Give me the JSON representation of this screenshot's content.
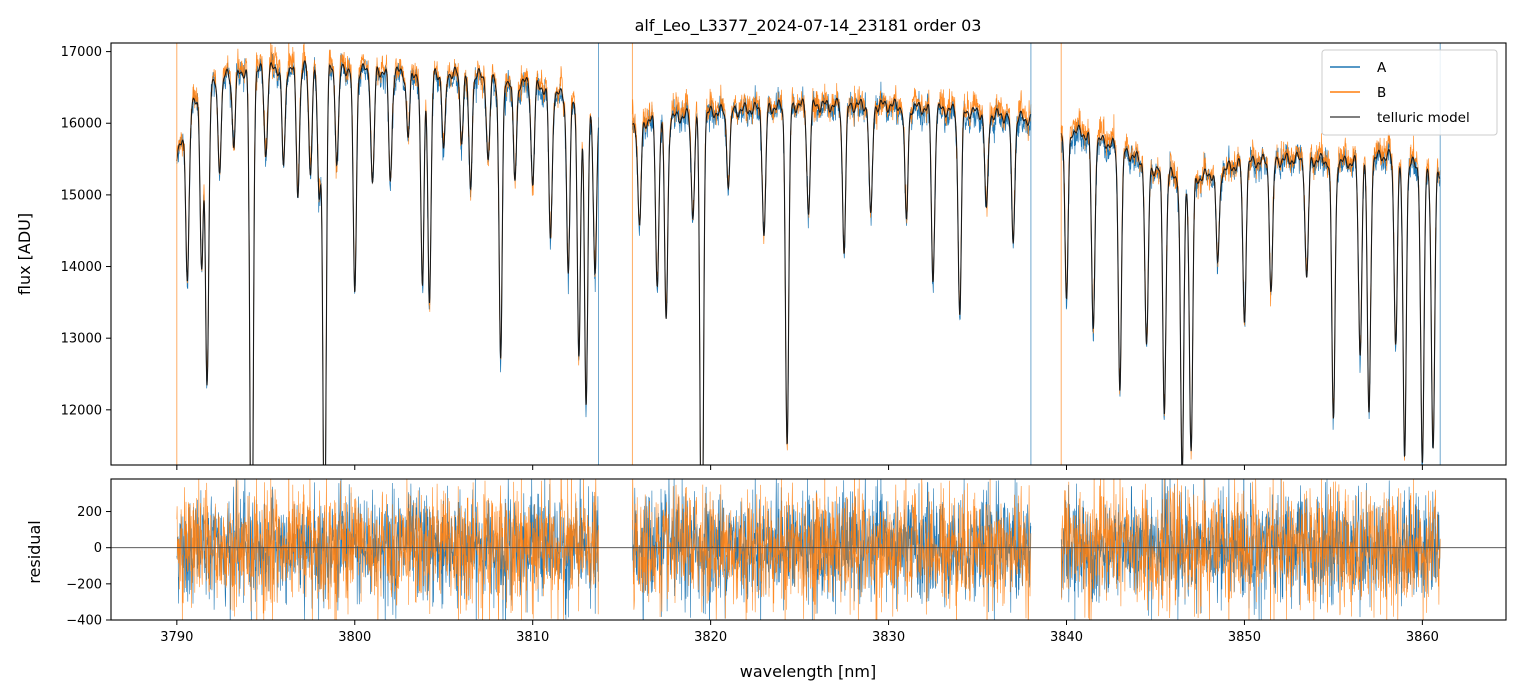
{
  "chart_data": [
    {
      "type": "line",
      "title": "alf_Leo_L3377_2024-07-14_23181  order 03",
      "xlabel": "",
      "ylabel": "flux [ADU]",
      "xlim": [
        3786.3,
        3864.7
      ],
      "ylim": [
        11230,
        17120
      ],
      "yticks": [
        12000,
        13000,
        14000,
        15000,
        16000,
        17000
      ],
      "xticks": [
        3790,
        3800,
        3810,
        3820,
        3830,
        3840,
        3850,
        3860
      ],
      "legend_position": "top-right",
      "colors": {
        "A": "#1f77b4",
        "B": "#ff7f0e",
        "telluric model": "#555555"
      },
      "segments": [
        [
          3790.0,
          3813.7
        ],
        [
          3815.6,
          3838.0
        ],
        [
          3839.7,
          3861.0
        ]
      ],
      "continuum": {
        "x": [
          3790.0,
          3791.0,
          3793.0,
          3795.0,
          3797.0,
          3800.0,
          3803.0,
          3806.0,
          3810.0,
          3813.5,
          3815.6,
          3817.0,
          3820.0,
          3825.0,
          3830.0,
          3835.0,
          3838.0,
          3839.7,
          3841.0,
          3843.0,
          3845.0,
          3847.0,
          3850.0,
          3853.0,
          3856.0,
          3858.0,
          3861.0
        ],
        "y": [
          15500,
          16350,
          16700,
          16750,
          16800,
          16750,
          16700,
          16700,
          16550,
          16200,
          16000,
          16050,
          16150,
          16250,
          16250,
          16150,
          16050,
          15950,
          15850,
          15650,
          15350,
          15200,
          15450,
          15500,
          15450,
          15550,
          15300
        ]
      },
      "absorption_lines": {
        "x": [
          3790.6,
          3791.4,
          3791.7,
          3792.4,
          3793.2,
          3794.2,
          3795.0,
          3796.0,
          3796.8,
          3797.5,
          3798.0,
          3798.3,
          3799.0,
          3800.0,
          3801.0,
          3802.0,
          3803.0,
          3803.8,
          3804.2,
          3805.0,
          3806.0,
          3806.5,
          3807.5,
          3808.2,
          3809.0,
          3810.0,
          3811.0,
          3812.0,
          3812.6,
          3813.0,
          3813.5,
          3816.0,
          3817.0,
          3817.5,
          3819.0,
          3819.5,
          3821.0,
          3823.0,
          3824.3,
          3825.5,
          3827.5,
          3829.0,
          3831.0,
          3832.5,
          3834.0,
          3835.5,
          3837.0,
          3840.0,
          3841.5,
          3843.0,
          3844.5,
          3845.5,
          3846.5,
          3847.0,
          3848.5,
          3850.0,
          3851.5,
          3853.5,
          3855.0,
          3856.5,
          3857.0,
          3858.5,
          3859.0,
          3860.0,
          3860.6
        ],
        "depth": [
          2200,
          2500,
          4100,
          1200,
          1000,
          8000,
          1200,
          1400,
          1800,
          1500,
          1900,
          7000,
          1300,
          3100,
          1600,
          1500,
          900,
          3000,
          3200,
          1100,
          900,
          1600,
          1200,
          3900,
          1400,
          1400,
          2100,
          2400,
          3500,
          4200,
          2400,
          1500,
          2300,
          2800,
          1400,
          7000,
          1000,
          1800,
          4700,
          1500,
          2000,
          1600,
          1600,
          2400,
          2800,
          1400,
          1700,
          2400,
          2700,
          3300,
          2600,
          3300,
          4200,
          3800,
          1300,
          2200,
          1800,
          1700,
          3600,
          2700,
          3600,
          2500,
          4100,
          4200,
          3900
        ]
      }
    },
    {
      "type": "line",
      "title": "",
      "xlabel": "wavelength [nm]",
      "ylabel": "residual",
      "xlim": [
        3786.3,
        3864.7
      ],
      "ylim": [
        -400,
        380
      ],
      "yticks": [
        -400,
        -200,
        0,
        200
      ],
      "xticks": [
        3790,
        3800,
        3810,
        3820,
        3830,
        3840,
        3850,
        3860
      ],
      "zero_line": 0,
      "residual_spread": {
        "A": 150,
        "B": 165
      }
    }
  ],
  "legend": {
    "entries": [
      {
        "label": "A",
        "color": "#1f77b4"
      },
      {
        "label": "B",
        "color": "#ff7f0e"
      },
      {
        "label": "telluric model",
        "color": "#555555"
      }
    ]
  }
}
